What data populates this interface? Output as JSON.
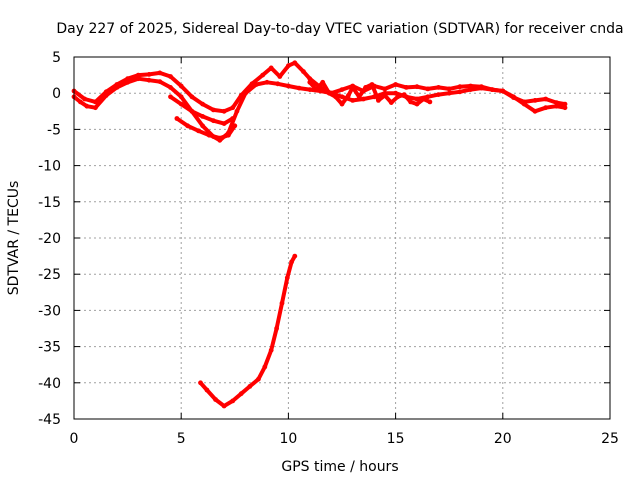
{
  "chart_data": {
    "type": "scatter",
    "title": "Day 227 of 2025, Sidereal Day-to-day VTEC variation (SDTVAR) for receiver cnda",
    "xlabel": "GPS time / hours",
    "ylabel": "SDTVAR / TECUs",
    "xlim": [
      0,
      25
    ],
    "ylim": [
      -45,
      5
    ],
    "xticks": [
      0,
      5,
      10,
      15,
      20,
      25
    ],
    "yticks": [
      5,
      0,
      -5,
      -10,
      -15,
      -20,
      -25,
      -30,
      -35,
      -40,
      -45
    ],
    "grid": true,
    "series_color": "#ff0000",
    "series": [
      {
        "name": "main",
        "points": [
          [
            0.0,
            -0.5
          ],
          [
            0.3,
            -1.2
          ],
          [
            0.6,
            -1.8
          ],
          [
            1.0,
            -2.0
          ],
          [
            1.5,
            -0.3
          ],
          [
            2.0,
            0.8
          ],
          [
            2.5,
            1.5
          ],
          [
            3.0,
            2.0
          ],
          [
            3.5,
            1.8
          ],
          [
            4.0,
            1.6
          ],
          [
            4.5,
            0.8
          ],
          [
            5.0,
            -0.5
          ],
          [
            5.5,
            -2.5
          ],
          [
            6.0,
            -4.5
          ],
          [
            6.5,
            -6.0
          ],
          [
            6.8,
            -6.5
          ],
          [
            7.2,
            -5.5
          ],
          [
            7.6,
            -2.5
          ],
          [
            8.0,
            0.0
          ],
          [
            8.5,
            1.2
          ],
          [
            9.0,
            1.5
          ],
          [
            9.5,
            1.3
          ],
          [
            10.0,
            1.0
          ],
          [
            10.5,
            0.7
          ],
          [
            11.0,
            0.5
          ],
          [
            11.5,
            0.3
          ],
          [
            12.0,
            0.0
          ],
          [
            12.5,
            -0.5
          ],
          [
            13.0,
            -1.0
          ],
          [
            13.5,
            -0.8
          ],
          [
            14.0,
            -0.5
          ],
          [
            14.5,
            0.0
          ],
          [
            15.0,
            0.0
          ],
          [
            15.5,
            -0.5
          ],
          [
            16.0,
            -0.8
          ],
          [
            16.5,
            -0.5
          ],
          [
            17.0,
            -0.2
          ],
          [
            17.5,
            0.0
          ],
          [
            18.0,
            0.2
          ],
          [
            18.5,
            0.5
          ],
          [
            19.0,
            0.7
          ],
          [
            19.5,
            0.5
          ],
          [
            20.0,
            0.3
          ],
          [
            20.5,
            -0.5
          ],
          [
            21.0,
            -1.5
          ],
          [
            21.5,
            -2.5
          ],
          [
            22.0,
            -2.0
          ],
          [
            22.5,
            -1.8
          ],
          [
            22.9,
            -2.0
          ]
        ]
      },
      {
        "name": "upper",
        "points": [
          [
            0.0,
            0.3
          ],
          [
            0.5,
            -0.8
          ],
          [
            1.0,
            -1.2
          ],
          [
            1.5,
            0.2
          ],
          [
            2.0,
            1.2
          ],
          [
            2.5,
            2.0
          ],
          [
            3.0,
            2.5
          ],
          [
            3.5,
            2.6
          ],
          [
            4.0,
            2.8
          ],
          [
            4.5,
            2.3
          ],
          [
            5.0,
            1.0
          ],
          [
            5.5,
            -0.5
          ],
          [
            6.0,
            -1.5
          ],
          [
            6.5,
            -2.3
          ],
          [
            7.0,
            -2.5
          ],
          [
            7.4,
            -2.0
          ],
          [
            7.8,
            -0.3
          ],
          [
            8.3,
            1.3
          ],
          [
            8.8,
            2.5
          ],
          [
            9.2,
            3.5
          ],
          [
            9.6,
            2.3
          ],
          [
            10.0,
            3.8
          ],
          [
            10.3,
            4.2
          ],
          [
            10.7,
            3.0
          ],
          [
            11.0,
            2.0
          ],
          [
            11.5,
            0.8
          ],
          [
            12.0,
            0.0
          ],
          [
            12.5,
            0.5
          ],
          [
            13.0,
            1.0
          ],
          [
            13.5,
            0.3
          ],
          [
            14.0,
            1.0
          ],
          [
            14.5,
            0.6
          ],
          [
            15.0,
            1.2
          ],
          [
            15.5,
            0.8
          ],
          [
            16.0,
            0.9
          ],
          [
            16.5,
            0.6
          ],
          [
            17.0,
            0.8
          ],
          [
            17.5,
            0.6
          ],
          [
            18.0,
            0.9
          ],
          [
            18.5,
            1.0
          ],
          [
            19.0,
            0.9
          ],
          [
            19.5,
            0.5
          ],
          [
            20.0,
            0.3
          ],
          [
            20.5,
            -0.6
          ],
          [
            21.0,
            -1.2
          ],
          [
            21.5,
            -1.0
          ],
          [
            22.0,
            -0.8
          ],
          [
            22.5,
            -1.3
          ],
          [
            22.9,
            -1.5
          ]
        ]
      },
      {
        "name": "middle",
        "points": [
          [
            4.5,
            -0.5
          ],
          [
            5.0,
            -1.5
          ],
          [
            5.5,
            -2.5
          ],
          [
            6.0,
            -3.2
          ],
          [
            6.5,
            -3.8
          ],
          [
            7.0,
            -4.2
          ],
          [
            7.4,
            -3.5
          ]
        ]
      },
      {
        "name": "lower",
        "points": [
          [
            4.8,
            -3.5
          ],
          [
            5.3,
            -4.5
          ],
          [
            5.8,
            -5.2
          ],
          [
            6.3,
            -5.8
          ],
          [
            6.8,
            -6.2
          ],
          [
            7.2,
            -5.8
          ],
          [
            7.5,
            -4.5
          ]
        ]
      },
      {
        "name": "wavy",
        "points": [
          [
            11.0,
            1.5
          ],
          [
            11.3,
            0.5
          ],
          [
            11.6,
            1.5
          ],
          [
            11.9,
            0.0
          ],
          [
            12.2,
            -0.5
          ],
          [
            12.5,
            -1.5
          ],
          [
            12.8,
            -0.3
          ],
          [
            13.0,
            0.8
          ],
          [
            13.3,
            -0.5
          ],
          [
            13.6,
            0.8
          ],
          [
            13.9,
            1.2
          ],
          [
            14.2,
            -1.0
          ],
          [
            14.5,
            -0.3
          ],
          [
            14.8,
            -1.3
          ],
          [
            15.1,
            -0.5
          ],
          [
            15.4,
            -0.2
          ],
          [
            15.7,
            -1.2
          ],
          [
            16.0,
            -1.5
          ],
          [
            16.3,
            -0.8
          ],
          [
            16.6,
            -1.2
          ]
        ]
      },
      {
        "name": "low-dip",
        "points": [
          [
            5.9,
            -40.0
          ],
          [
            6.2,
            -41.0
          ],
          [
            6.6,
            -42.3
          ],
          [
            7.0,
            -43.2
          ],
          [
            7.4,
            -42.5
          ],
          [
            7.8,
            -41.5
          ],
          [
            8.2,
            -40.5
          ],
          [
            8.6,
            -39.5
          ],
          [
            8.9,
            -37.8
          ],
          [
            9.2,
            -35.5
          ],
          [
            9.45,
            -32.5
          ],
          [
            9.7,
            -29.0
          ],
          [
            9.95,
            -25.5
          ],
          [
            10.15,
            -23.3
          ],
          [
            10.3,
            -22.5
          ]
        ]
      }
    ]
  }
}
